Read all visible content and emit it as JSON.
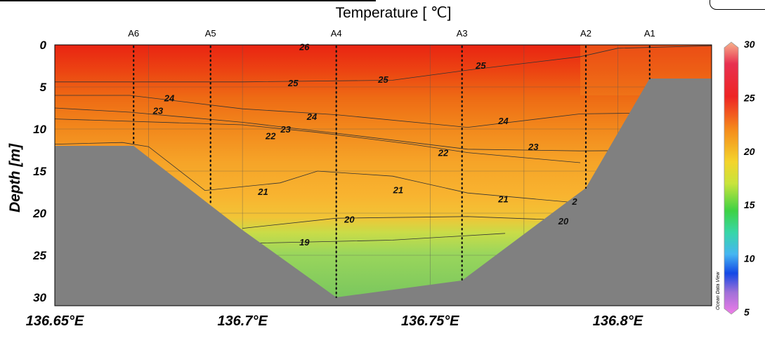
{
  "chart_data": {
    "type": "heatmap",
    "title": "Temperature [ ℃]",
    "xlabel": "",
    "ylabel": "Depth [m]",
    "xlim": [
      136.65,
      136.825
    ],
    "ylim": [
      31,
      0
    ],
    "x_ticks": [
      {
        "value": 136.65,
        "label": "136.65°E"
      },
      {
        "value": 136.7,
        "label": "136.7°E"
      },
      {
        "value": 136.75,
        "label": "136.75°E"
      },
      {
        "value": 136.8,
        "label": "136.8°E"
      }
    ],
    "y_ticks": [
      {
        "value": 0,
        "label": "0"
      },
      {
        "value": 5,
        "label": "5"
      },
      {
        "value": 10,
        "label": "10"
      },
      {
        "value": 15,
        "label": "15"
      },
      {
        "value": 20,
        "label": "20"
      },
      {
        "value": 25,
        "label": "25"
      },
      {
        "value": 30,
        "label": "30"
      }
    ],
    "stations": [
      {
        "name": "A6",
        "lon": 136.671,
        "max_depth": 12
      },
      {
        "name": "A5",
        "lon": 136.6915,
        "max_depth": 19
      },
      {
        "name": "A4",
        "lon": 136.725,
        "max_depth": 30
      },
      {
        "name": "A3",
        "lon": 136.7585,
        "max_depth": 28
      },
      {
        "name": "A2",
        "lon": 136.7915,
        "max_depth": 17
      },
      {
        "name": "A1",
        "lon": 136.8085,
        "max_depth": 4
      }
    ],
    "bottom_profile": [
      {
        "lon": 136.65,
        "depth": 12
      },
      {
        "lon": 136.671,
        "depth": 12
      },
      {
        "lon": 136.7,
        "depth": 22
      },
      {
        "lon": 136.725,
        "depth": 30
      },
      {
        "lon": 136.7585,
        "depth": 28
      },
      {
        "lon": 136.7915,
        "depth": 17
      },
      {
        "lon": 136.8085,
        "depth": 4
      },
      {
        "lon": 136.825,
        "depth": 4
      }
    ],
    "contour_labels": [
      {
        "value": "26",
        "lon": 136.7165,
        "depth": 0.2
      },
      {
        "value": "25",
        "lon": 136.7635,
        "depth": 2.4
      },
      {
        "value": "25",
        "lon": 136.7135,
        "depth": 4.5
      },
      {
        "value": "25",
        "lon": 136.7375,
        "depth": 4.1
      },
      {
        "value": "24",
        "lon": 136.6805,
        "depth": 6.3
      },
      {
        "value": "23",
        "lon": 136.6775,
        "depth": 7.8
      },
      {
        "value": "24",
        "lon": 136.7185,
        "depth": 8.5
      },
      {
        "value": "24",
        "lon": 136.7695,
        "depth": 9.0
      },
      {
        "value": "23",
        "lon": 136.7115,
        "depth": 10.0
      },
      {
        "value": "22",
        "lon": 136.7075,
        "depth": 10.8
      },
      {
        "value": "23",
        "lon": 136.7775,
        "depth": 12.1
      },
      {
        "value": "22",
        "lon": 136.7535,
        "depth": 12.8
      },
      {
        "value": "21",
        "lon": 136.7055,
        "depth": 17.4
      },
      {
        "value": "21",
        "lon": 136.7415,
        "depth": 17.2
      },
      {
        "value": "21",
        "lon": 136.7695,
        "depth": 18.3
      },
      {
        "value": "20",
        "lon": 136.7285,
        "depth": 20.7
      },
      {
        "value": "20",
        "lon": 136.7855,
        "depth": 20.9
      },
      {
        "value": "19",
        "lon": 136.7165,
        "depth": 23.4
      },
      {
        "value": "2",
        "lon": 136.7885,
        "depth": 18.6
      }
    ],
    "colorbar": {
      "min": 5,
      "max": 30,
      "ticks": [
        "30",
        "25",
        "20",
        "15",
        "10",
        "5"
      ]
    },
    "colors": {
      "warm_26": "#e82a12",
      "t25": "#ec5a12",
      "t24": "#f0801a",
      "t23": "#f5962a",
      "t22": "#f8aa2c",
      "t21": "#f8b631",
      "t20": "#e8d23a",
      "t19": "#a6dc58",
      "t18": "#7ec860",
      "seabed": "#808080"
    },
    "grid": true
  },
  "watermark": "Ocean Data View"
}
